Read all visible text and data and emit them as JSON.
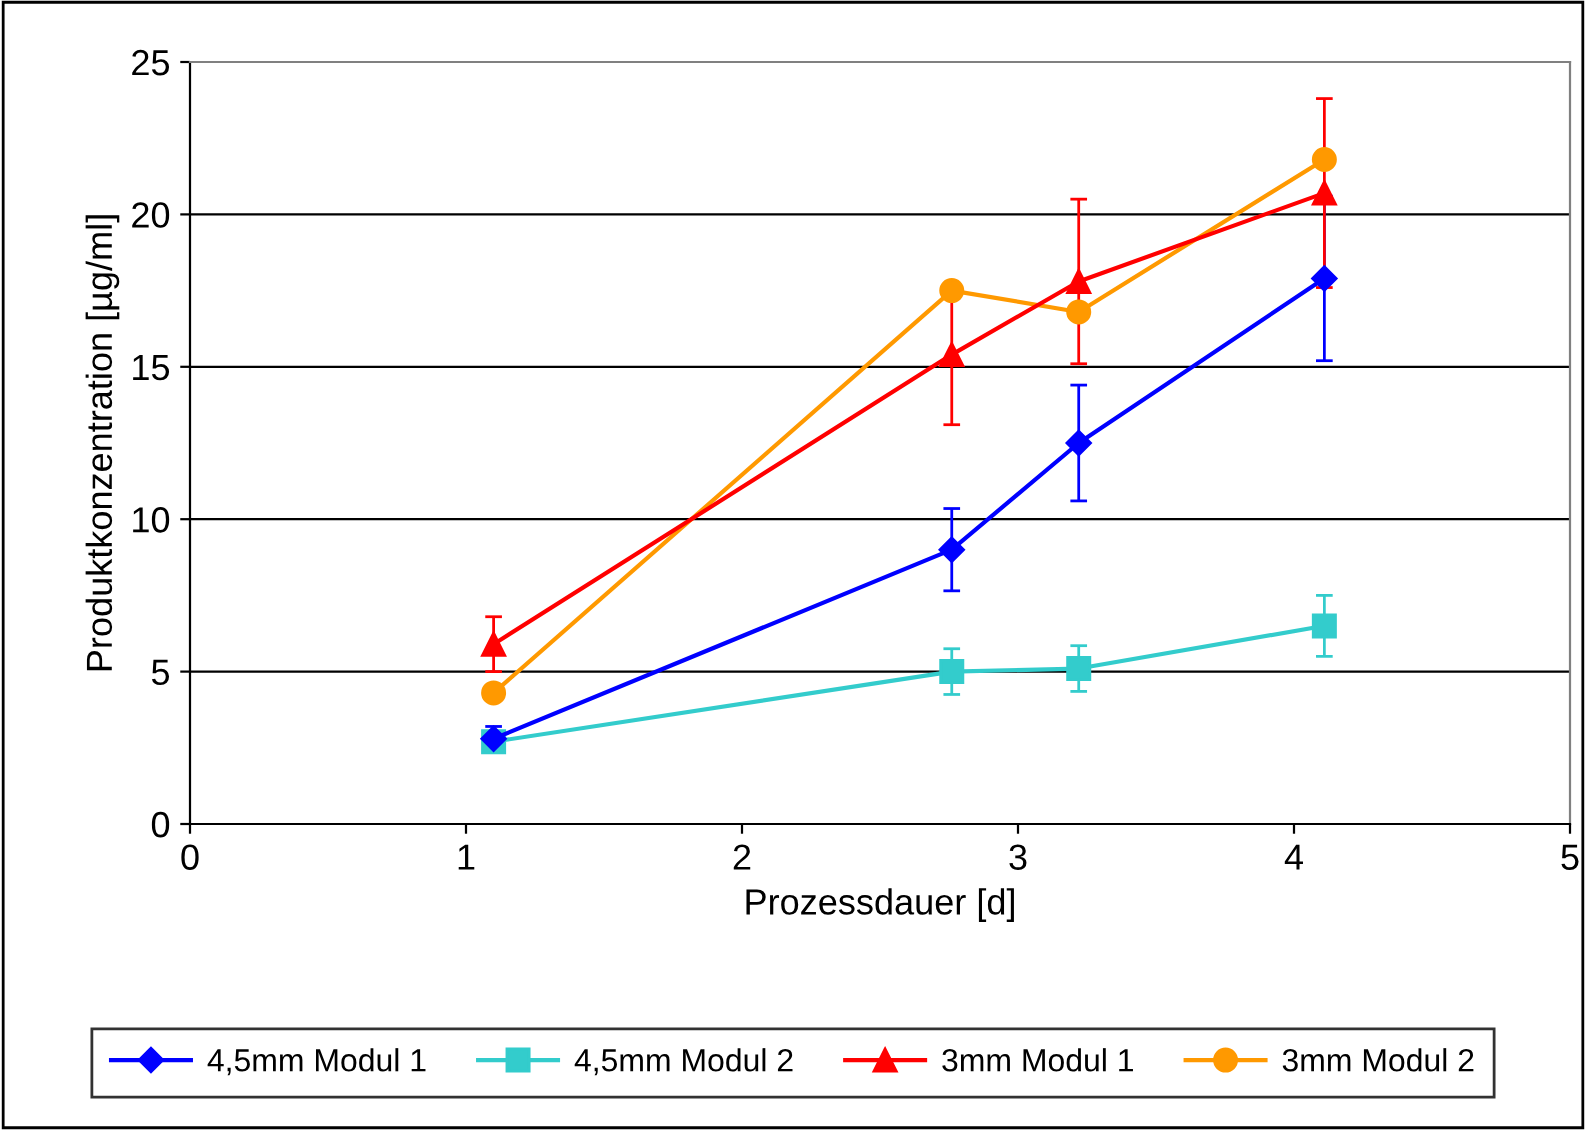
{
  "chart_data": {
    "type": "line",
    "xlabel": "Prozessdauer [d]",
    "ylabel": "Produktkonzentration [µg/ml]",
    "x": [
      1.1,
      2.76,
      3.22,
      4.11
    ],
    "series": [
      {
        "name": "4,5mm Modul 1",
        "color": "#0000ff",
        "marker": "diamond",
        "values": [
          2.8,
          9.0,
          12.5,
          17.9
        ],
        "errors": [
          0.4,
          1.35,
          1.9,
          2.7
        ]
      },
      {
        "name": "4,5mm Modul 2",
        "color": "#33cccc",
        "marker": "square",
        "values": [
          2.7,
          5.0,
          5.1,
          6.5
        ],
        "errors": [
          0.3,
          0.75,
          0.75,
          1.0
        ]
      },
      {
        "name": "3mm Modul 1",
        "color": "#ff0000",
        "marker": "triangle",
        "values": [
          5.9,
          15.4,
          17.8,
          20.7
        ],
        "errors": [
          0.9,
          2.3,
          2.7,
          3.1
        ]
      },
      {
        "name": "3mm Modul 2",
        "color": "#ff9900",
        "marker": "circle",
        "values": [
          4.3,
          17.5,
          16.8,
          21.8
        ]
      }
    ],
    "xlim": [
      0,
      5
    ],
    "xticks": [
      0,
      1,
      2,
      3,
      4,
      5
    ],
    "ylim": [
      0,
      25
    ],
    "yticks": [
      0,
      5,
      10,
      15,
      20,
      25
    ],
    "grid": "y",
    "legend": "bottom",
    "line_style": "solid"
  }
}
